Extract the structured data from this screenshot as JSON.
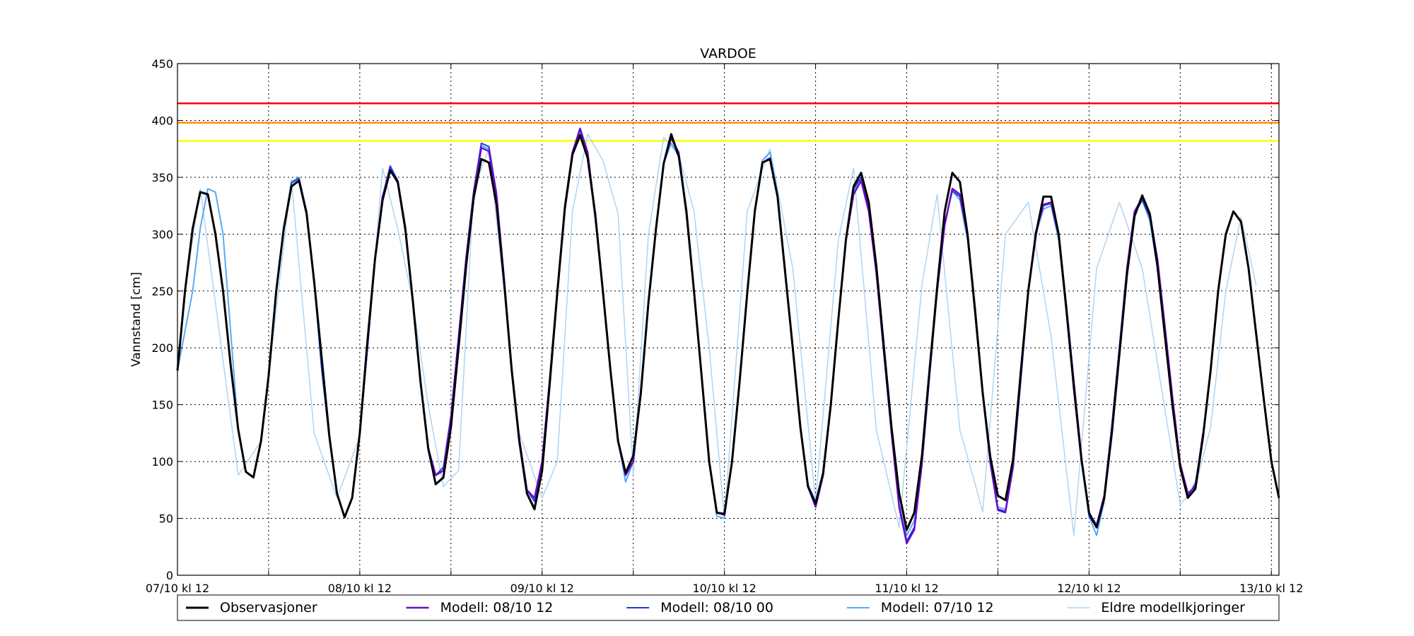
{
  "chart_data": {
    "type": "line",
    "title": "VARDOE",
    "ylabel": "Vannstand [cm]",
    "xlabel": "",
    "ylim": [
      0,
      450
    ],
    "yticks": [
      0,
      50,
      100,
      150,
      200,
      250,
      300,
      350,
      400,
      450
    ],
    "xlim": [
      0,
      290
    ],
    "x_unit": "hours since 07/10 kl 12",
    "x_tick_labels": [
      "07/10 kl 12",
      "08/10 kl 12",
      "09/10 kl 12",
      "10/10 kl 12",
      "11/10 kl 12",
      "12/10 kl 12",
      "13/10 kl 12"
    ],
    "x_tick_values": [
      0,
      48,
      96,
      144,
      192,
      240,
      288
    ],
    "x_minor_ticks": [
      24,
      72,
      120,
      168,
      216,
      264
    ],
    "grid": true,
    "legend_position": "bottom",
    "thresholds": [
      {
        "value": 415,
        "color": "#ff0000"
      },
      {
        "value": 398,
        "color": "#ff8c00"
      },
      {
        "value": 382,
        "color": "#ffff00"
      }
    ],
    "series": [
      {
        "name": "Eldre modellkjoringer",
        "color": "#b0d4f1",
        "width": 1.5,
        "x": [
          2,
          6,
          16,
          22,
          30,
          36,
          42,
          48,
          54,
          58,
          62,
          66,
          70,
          74,
          78,
          82,
          90,
          96,
          100,
          104,
          108,
          112,
          116,
          120,
          124,
          128,
          132,
          136,
          140,
          144,
          150,
          156,
          162,
          168,
          174,
          178,
          184,
          190,
          196,
          200,
          206,
          212,
          218,
          224,
          230,
          236,
          242,
          248,
          254,
          264,
          268,
          272,
          276,
          280,
          284
        ],
        "y": [
          250,
          340,
          88,
          118,
          348,
          125,
          68,
          122,
          358,
          305,
          240,
          150,
          78,
          92,
          340,
          375,
          125,
          68,
          100,
          320,
          388,
          365,
          318,
          88,
          300,
          385,
          370,
          320,
          200,
          50,
          320,
          375,
          270,
          65,
          295,
          358,
          128,
          42,
          255,
          335,
          128,
          56,
          300,
          328,
          210,
          35,
          270,
          328,
          270,
          62,
          78,
          130,
          250,
          315,
          255
        ]
      },
      {
        "name": "Modell: 07/10 12",
        "color": "#5aa9f5",
        "width": 2,
        "x": [
          0,
          4,
          6,
          8,
          10,
          12,
          16,
          18,
          20,
          22,
          24,
          26,
          28,
          30,
          32,
          34,
          36,
          38,
          40,
          42,
          44,
          46,
          48,
          50,
          52,
          54,
          56,
          58,
          60,
          62,
          64,
          66,
          68,
          70,
          72,
          74,
          76,
          78,
          80,
          82,
          84,
          86,
          88,
          90,
          92,
          94,
          96,
          98,
          100,
          102,
          104,
          106,
          108,
          110,
          112,
          114,
          116,
          118,
          120,
          122,
          124,
          126,
          128,
          130,
          132,
          134,
          136,
          138,
          140,
          142,
          144,
          146,
          148,
          150,
          152,
          154,
          156,
          158,
          160,
          162,
          164,
          166,
          168,
          170,
          172,
          174,
          176,
          178,
          180,
          182,
          184,
          186,
          188,
          190,
          192,
          194,
          196,
          198,
          200,
          202,
          204,
          206,
          208,
          210,
          212,
          214,
          216,
          218,
          220,
          222,
          224,
          226,
          228,
          230,
          232,
          234,
          236,
          238,
          240,
          242,
          244,
          246,
          248,
          250,
          252,
          254,
          256,
          258,
          260,
          262,
          264,
          266,
          268,
          270,
          272,
          274,
          276,
          278,
          280,
          282,
          284,
          286,
          288,
          290
        ],
        "y": [
          180,
          250,
          305,
          340,
          337,
          300,
          128,
          91,
          86,
          118,
          175,
          250,
          305,
          346,
          350,
          320,
          258,
          180,
          120,
          72,
          51,
          68,
          125,
          200,
          278,
          333,
          358,
          345,
          303,
          240,
          170,
          110,
          80,
          85,
          130,
          200,
          272,
          332,
          378,
          375,
          330,
          258,
          180,
          118,
          72,
          60,
          92,
          168,
          248,
          325,
          370,
          390,
          368,
          312,
          250,
          180,
          118,
          82,
          100,
          160,
          240,
          305,
          362,
          380,
          368,
          315,
          250,
          175,
          100,
          52,
          50,
          100,
          170,
          248,
          318,
          365,
          372,
          335,
          268,
          200,
          130,
          80,
          65,
          90,
          150,
          225,
          295,
          337,
          350,
          325,
          272,
          200,
          130,
          72,
          35,
          48,
          105,
          180,
          253,
          310,
          338,
          330,
          295,
          232,
          160,
          100,
          60,
          58,
          98,
          175,
          250,
          300,
          322,
          325,
          295,
          232,
          165,
          100,
          52,
          35,
          65,
          125,
          195,
          265,
          318,
          330,
          312,
          270,
          212,
          150,
          95,
          68,
          82,
          120,
          178,
          250,
          298,
          320,
          310,
          270,
          215,
          155,
          100,
          68
        ]
      },
      {
        "name": "Modell: 08/10 00",
        "color": "#1a3ae0",
        "width": 2,
        "x": [
          24,
          26,
          28,
          30,
          32,
          34,
          36,
          38,
          40,
          42,
          44,
          46,
          48,
          50,
          52,
          54,
          56,
          58,
          60,
          62,
          64,
          66,
          68,
          70,
          72,
          74,
          76,
          78,
          80,
          82,
          84,
          86,
          88,
          90,
          92,
          94,
          96,
          98,
          100,
          102,
          104,
          106,
          108,
          110,
          112,
          114,
          116,
          118,
          120,
          122,
          124,
          126,
          128,
          130,
          132,
          134,
          136,
          138,
          140,
          142,
          144,
          146,
          148,
          150,
          152,
          154,
          156,
          158,
          160,
          162,
          164,
          166,
          168,
          170,
          172,
          174,
          176,
          178,
          180,
          182,
          184,
          186,
          188,
          190,
          192,
          194,
          196,
          198,
          200,
          202,
          204,
          206,
          208,
          210,
          212,
          214,
          216,
          218,
          220,
          222,
          224,
          226,
          228,
          230,
          232,
          234,
          236,
          238,
          240,
          242,
          244,
          246,
          248,
          250,
          252,
          254,
          256,
          258,
          260,
          262,
          264,
          266,
          268
        ],
        "y": [
          175,
          250,
          305,
          345,
          349,
          320,
          258,
          180,
          120,
          72,
          51,
          68,
          125,
          200,
          278,
          333,
          360,
          347,
          303,
          240,
          170,
          112,
          88,
          95,
          140,
          210,
          280,
          338,
          380,
          377,
          336,
          262,
          182,
          120,
          75,
          65,
          98,
          172,
          250,
          325,
          372,
          392,
          370,
          315,
          250,
          180,
          118,
          88,
          100,
          162,
          240,
          305,
          362,
          384,
          372,
          320,
          250,
          175,
          100,
          55,
          53,
          100,
          170,
          248,
          320,
          363,
          367,
          333,
          266,
          200,
          130,
          78,
          62,
          88,
          150,
          225,
          295,
          340,
          350,
          322,
          268,
          195,
          125,
          62,
          30,
          42,
          100,
          178,
          252,
          310,
          338,
          333,
          298,
          232,
          158,
          98,
          57,
          55,
          96,
          174,
          250,
          302,
          325,
          327,
          298,
          235,
          168,
          102,
          52,
          42,
          68,
          128,
          198,
          268,
          318,
          330,
          315,
          275,
          215,
          152,
          96,
          70,
          80
        ]
      },
      {
        "name": "Modell: 08/10 12",
        "color": "#6a0dc8",
        "width": 2.5,
        "x": [
          48,
          50,
          52,
          54,
          56,
          58,
          60,
          62,
          64,
          66,
          68,
          70,
          72,
          74,
          76,
          78,
          80,
          82,
          84,
          86,
          88,
          90,
          92,
          94,
          96,
          98,
          100,
          102,
          104,
          106,
          108,
          110,
          112,
          114,
          116,
          118,
          120,
          122,
          124,
          126,
          128,
          130,
          132,
          134,
          136,
          138,
          140,
          142,
          144,
          146,
          148,
          150,
          152,
          154,
          156,
          158,
          160,
          162,
          164,
          166,
          168,
          170,
          172,
          174,
          176,
          178,
          180,
          182,
          184,
          186,
          188,
          190,
          192,
          194,
          196,
          198,
          200,
          202,
          204,
          206,
          208,
          210,
          212,
          214,
          216,
          218,
          220,
          222,
          224,
          226,
          228,
          230,
          232,
          234,
          236,
          238,
          240,
          242,
          244,
          246,
          248,
          250,
          252,
          254,
          256,
          258,
          260,
          262,
          264,
          266,
          268,
          270
        ],
        "y": [
          125,
          200,
          278,
          333,
          357,
          345,
          303,
          240,
          170,
          112,
          88,
          92,
          138,
          208,
          278,
          336,
          376,
          373,
          334,
          260,
          180,
          120,
          75,
          68,
          100,
          172,
          250,
          325,
          372,
          393,
          372,
          316,
          250,
          180,
          118,
          88,
          100,
          162,
          240,
          305,
          362,
          385,
          370,
          320,
          250,
          175,
          100,
          55,
          53,
          100,
          170,
          248,
          320,
          363,
          366,
          333,
          266,
          200,
          130,
          78,
          60,
          88,
          150,
          225,
          295,
          335,
          347,
          320,
          266,
          195,
          125,
          60,
          28,
          40,
          98,
          176,
          250,
          308,
          340,
          335,
          300,
          235,
          160,
          100,
          58,
          56,
          95,
          172,
          250,
          302,
          326,
          328,
          300,
          238,
          170,
          104,
          54,
          44,
          70,
          130,
          200,
          270,
          320,
          332,
          318,
          278,
          218,
          155,
          98,
          72,
          78,
          125
        ]
      },
      {
        "name": "Observasjoner",
        "color": "#000000",
        "width": 3,
        "x": [
          0,
          2,
          4,
          6,
          8,
          10,
          12,
          14,
          16,
          18,
          20,
          22,
          24,
          26,
          28,
          30,
          32,
          34,
          36,
          38,
          40,
          42,
          44,
          46,
          48,
          50,
          52,
          54,
          56,
          58,
          60,
          62,
          64,
          66,
          68,
          70,
          72,
          74,
          76,
          78,
          80,
          82,
          84,
          86,
          88,
          90,
          92,
          94,
          96,
          98,
          100,
          102,
          104,
          106,
          108,
          110,
          112,
          114,
          116,
          118,
          120,
          122,
          124,
          126,
          128,
          130,
          132,
          134,
          136,
          138,
          140,
          142,
          144,
          146,
          148,
          150,
          152,
          154,
          156,
          158,
          160,
          162,
          164,
          166,
          168,
          170,
          172,
          174,
          176,
          178,
          180,
          182,
          184,
          186,
          188,
          190,
          192,
          194,
          196,
          198,
          200,
          202,
          204,
          206,
          208,
          210,
          212,
          214,
          216,
          218,
          220,
          222,
          224,
          226,
          228,
          230,
          232,
          234,
          236,
          238,
          240,
          242,
          244,
          246,
          248,
          250,
          252,
          254,
          256,
          258,
          260,
          262,
          264,
          266,
          268,
          270,
          272,
          274,
          276,
          278,
          280,
          282,
          284,
          286,
          288,
          290
        ],
        "y": [
          180,
          250,
          305,
          337,
          335,
          300,
          250,
          185,
          128,
          91,
          86,
          118,
          175,
          250,
          305,
          342,
          347,
          318,
          258,
          190,
          122,
          72,
          51,
          68,
          125,
          205,
          278,
          330,
          356,
          346,
          305,
          240,
          170,
          112,
          80,
          86,
          130,
          200,
          272,
          332,
          366,
          363,
          326,
          258,
          180,
          118,
          72,
          58,
          92,
          168,
          248,
          323,
          370,
          387,
          367,
          317,
          250,
          180,
          118,
          90,
          105,
          160,
          240,
          305,
          362,
          388,
          368,
          320,
          250,
          175,
          100,
          55,
          54,
          100,
          170,
          248,
          320,
          363,
          366,
          333,
          266,
          200,
          130,
          78,
          63,
          90,
          150,
          225,
          295,
          342,
          354,
          328,
          272,
          200,
          130,
          72,
          40,
          55,
          105,
          180,
          253,
          320,
          354,
          346,
          300,
          232,
          160,
          104,
          70,
          66,
          102,
          178,
          250,
          300,
          333,
          333,
          300,
          235,
          165,
          102,
          55,
          42,
          68,
          125,
          195,
          265,
          316,
          334,
          318,
          272,
          210,
          148,
          95,
          68,
          76,
          122,
          180,
          250,
          300,
          320,
          311,
          270,
          212,
          155,
          100,
          68
        ]
      }
    ],
    "legend": [
      "Observasjoner",
      "Modell: 08/10 12",
      "Modell: 08/10 00",
      "Modell: 07/10 12",
      "Eldre modellkjoringer"
    ]
  }
}
